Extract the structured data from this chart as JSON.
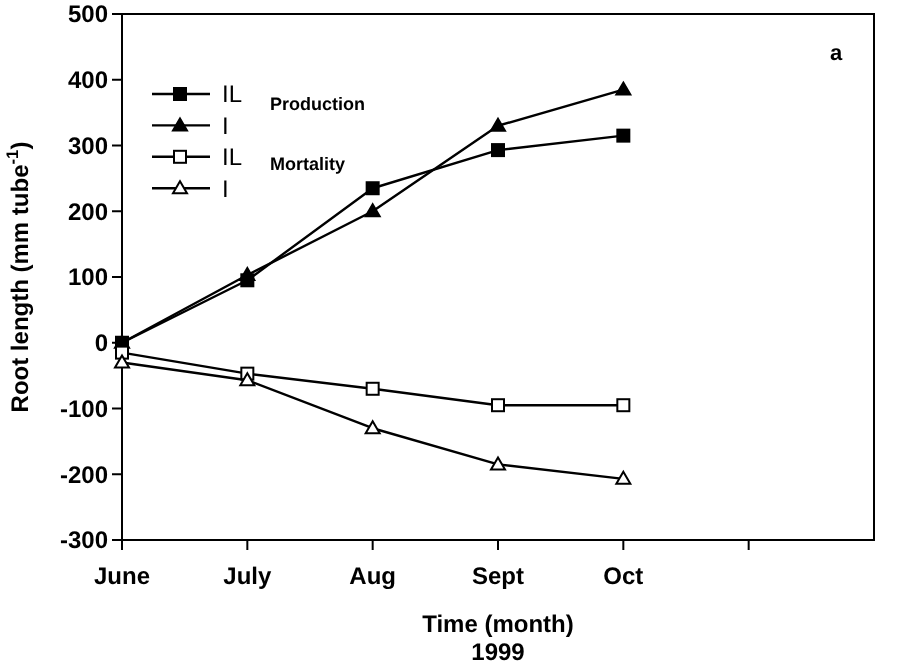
{
  "chart_data": {
    "type": "line",
    "xlabel": "Time (month)\n1999",
    "ylabel": "Root length (mm tube$^{-1}$)",
    "categories": [
      "June",
      "July",
      "Aug",
      "Sept",
      "Oct",
      null
    ],
    "ylim": [
      -300,
      500
    ],
    "yticks": [
      -300,
      -200,
      -100,
      0,
      100,
      200,
      300,
      400,
      500
    ],
    "grid": false,
    "legend": "top left",
    "line_style": "solid",
    "annotations": [
      "Production",
      "Mortality",
      "a"
    ],
    "series": [
      {
        "name": "IL",
        "color": "#000000",
        "marker": "square",
        "values": [
          0,
          95,
          235,
          293,
          315,
          null
        ]
      },
      {
        "name": "I",
        "color": "#000000",
        "marker": "triangle",
        "values": [
          0,
          103,
          200,
          330,
          385,
          null
        ]
      },
      {
        "name": "IL",
        "color": "#000000",
        "marker": "square-open",
        "values": [
          -15,
          -47,
          -70,
          -95,
          -95,
          null
        ]
      },
      {
        "name": "I",
        "color": "#000000",
        "marker": "triangle-open",
        "values": [
          -30,
          -57,
          -130,
          -185,
          -207,
          null
        ]
      }
    ]
  }
}
